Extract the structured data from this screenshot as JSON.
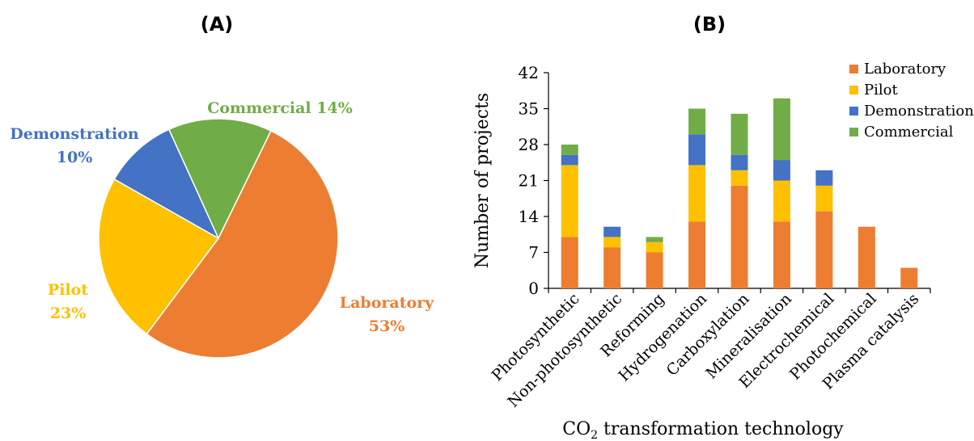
{
  "panels": {
    "a_label": "(A)",
    "b_label": "(B)"
  },
  "colors": {
    "Laboratory": "#ED7D31",
    "Pilot": "#FFC000",
    "Demonstration": "#4472C4",
    "Commercial": "#70AD47"
  },
  "chart_data": [
    {
      "type": "pie",
      "panel": "(A)",
      "slices": [
        {
          "name": "Laboratory",
          "value": 53,
          "label_line1": "Laboratory",
          "label_line2": "53%"
        },
        {
          "name": "Pilot",
          "value": 23,
          "label_line1": "Pilot",
          "label_line2": "23%"
        },
        {
          "name": "Demonstration",
          "value": 10,
          "label_line1": "Demonstration",
          "label_line2": "10%"
        },
        {
          "name": "Commercial",
          "value": 14,
          "label_line1": "Commercial 14%",
          "label_line2": ""
        }
      ]
    },
    {
      "type": "bar",
      "stacked": true,
      "panel": "(B)",
      "xlabel_main": "CO",
      "xlabel_sub": "2",
      "xlabel_rest": " transformation technology",
      "ylabel": "Number of projects",
      "ylim": [
        0,
        42
      ],
      "yticks": [
        "0",
        "7",
        "14",
        "21",
        "28",
        "35",
        "42"
      ],
      "categories": [
        "Photosynthetic",
        "Non-photosynthetic",
        "Reforming",
        "Hydrogenation",
        "Carboxylation",
        "Mineralisation",
        "Electrochemical",
        "Photochemical",
        "Plasma catalysis"
      ],
      "series": [
        {
          "name": "Laboratory",
          "values": [
            10,
            8,
            7,
            13,
            20,
            13,
            15,
            12,
            4
          ]
        },
        {
          "name": "Pilot",
          "values": [
            14,
            2,
            2,
            11,
            3,
            8,
            5,
            0,
            0
          ]
        },
        {
          "name": "Demonstration",
          "values": [
            2,
            2,
            0,
            6,
            3,
            4,
            3,
            0,
            0
          ]
        },
        {
          "name": "Commercial",
          "values": [
            2,
            0,
            1,
            5,
            8,
            12,
            0,
            0,
            0
          ]
        }
      ],
      "legend_position": "top-right",
      "grid": false
    }
  ]
}
